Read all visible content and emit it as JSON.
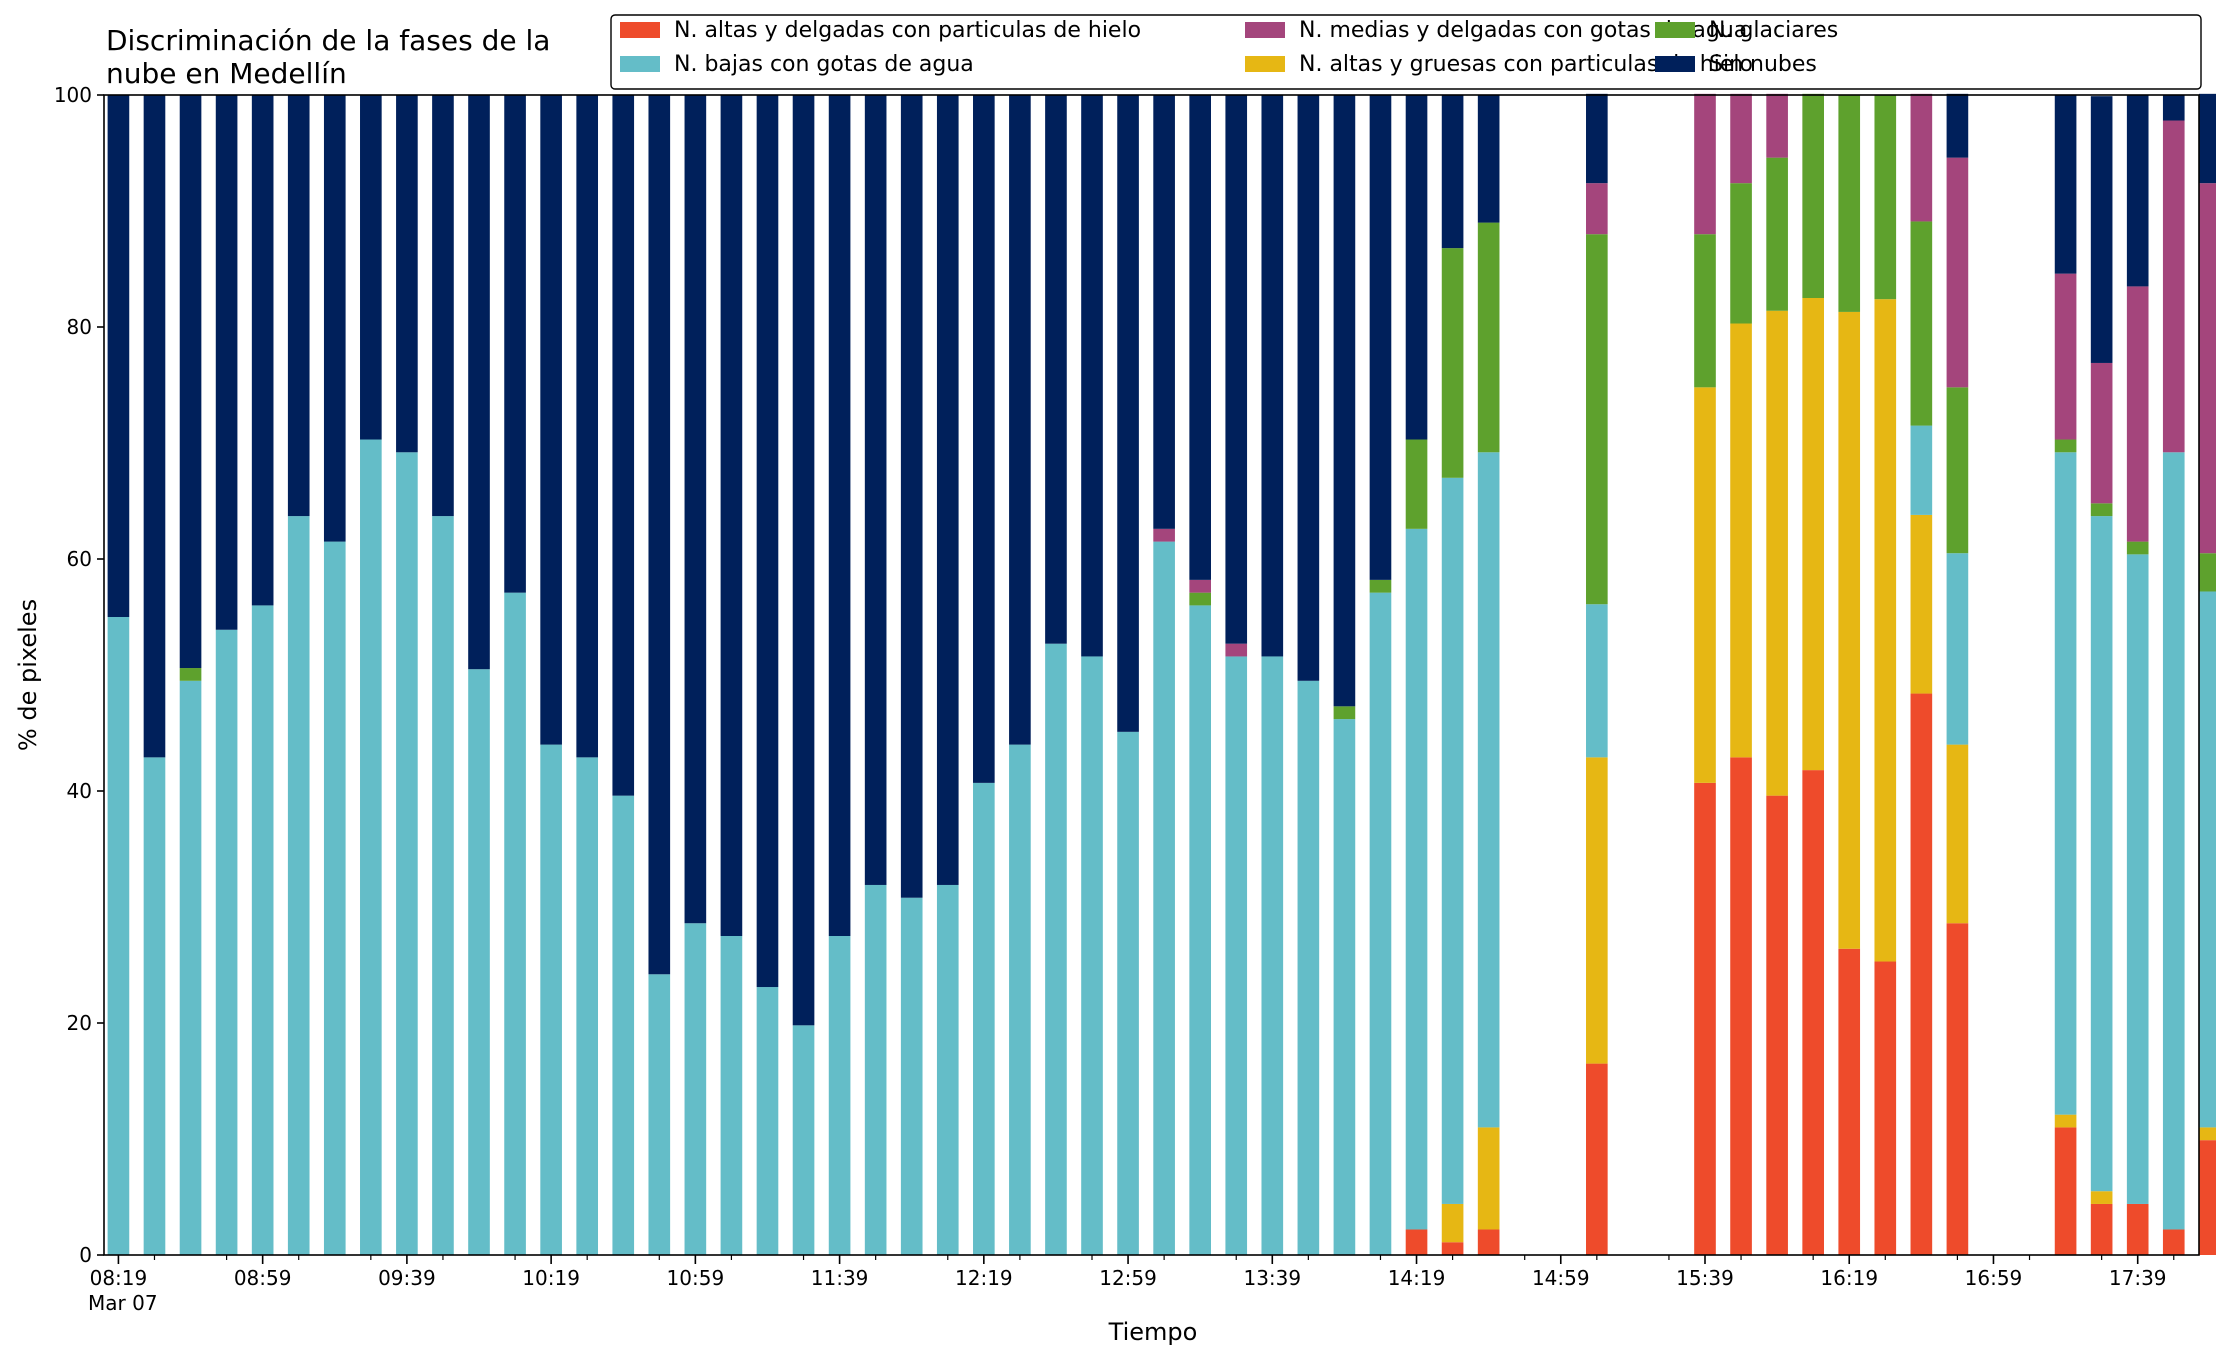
{
  "chart_data": {
    "type": "bar",
    "stacked": true,
    "title_lines": [
      "Discriminación de la fases de la",
      "nube en Medellín"
    ],
    "xlabel": "Tiempo",
    "ylabel": "% de pixeles",
    "ylim": [
      0,
      100
    ],
    "yticks": [
      0,
      20,
      40,
      60,
      80,
      100
    ],
    "xlim_minutes": [
      495,
      1076
    ],
    "date_label": "Mar 07",
    "xtick_labels": [
      "08:19",
      "08:59",
      "09:39",
      "10:19",
      "10:59",
      "11:39",
      "12:19",
      "12:59",
      "13:39",
      "14:19",
      "14:59",
      "15:39",
      "16:19",
      "16:59",
      "17:39"
    ],
    "xtick_minutes": [
      499,
      539,
      579,
      619,
      659,
      699,
      739,
      779,
      819,
      859,
      899,
      939,
      979,
      1019,
      1059
    ],
    "legend_position": "top-right",
    "legend": [
      {
        "name": "N. altas y delgadas con particulas de hielo",
        "color": "#ee4b2b",
        "series": 0
      },
      {
        "name": "N. bajas con gotas de agua",
        "color": "#64bdc8",
        "series": 2
      },
      {
        "name": "N. medias y delgadas con gotas de agua",
        "color": "#a4457c",
        "series": 4
      },
      {
        "name": "N. altas y gruesas con particulas de hielo",
        "color": "#e6b714",
        "series": 1
      },
      {
        "name": "N. glaciares",
        "color": "#5ea12d",
        "series": 3
      },
      {
        "name": "Sin nubes",
        "color": "#00205b",
        "series": 5
      }
    ],
    "x": [
      "08:19",
      "08:29",
      "08:39",
      "08:49",
      "08:59",
      "09:09",
      "09:19",
      "09:29",
      "09:39",
      "09:49",
      "09:59",
      "10:09",
      "10:19",
      "10:29",
      "10:39",
      "10:49",
      "10:59",
      "11:09",
      "11:19",
      "11:29",
      "11:39",
      "11:49",
      "11:59",
      "12:09",
      "12:19",
      "12:29",
      "12:39",
      "12:49",
      "12:59",
      "13:09",
      "13:19",
      "13:29",
      "13:39",
      "13:49",
      "13:59",
      "14:09",
      "14:19",
      "14:29",
      "14:39",
      "15:09",
      "15:29",
      "15:39",
      "15:49",
      "15:59",
      "16:09",
      "16:19",
      "16:29",
      "16:39",
      "16:49",
      "16:59",
      "17:19",
      "17:29",
      "17:39",
      "17:49",
      "17:59"
    ],
    "series": [
      {
        "name": "N. altas y delgadas con particulas de hielo",
        "color": "#ee4b2b",
        "values": [
          0,
          0,
          0,
          0,
          0,
          0,
          0,
          0,
          0,
          0,
          0,
          0,
          0,
          0,
          0,
          0,
          0,
          0,
          0,
          0,
          0,
          0,
          0,
          0,
          0,
          0,
          0,
          0,
          0,
          0,
          0,
          0,
          0,
          0,
          0,
          0,
          2.2,
          1.1,
          2.2,
          16.5,
          0,
          40.7,
          42.9,
          39.6,
          41.8,
          26.4,
          25.3,
          48.4,
          28.6,
          0,
          11.0,
          4.4,
          4.4,
          2.2,
          9.9
        ]
      },
      {
        "name": "N. altas y gruesas con particulas de hielo",
        "color": "#e6b714",
        "values": [
          0,
          0,
          0,
          0,
          0,
          0,
          0,
          0,
          0,
          0,
          0,
          0,
          0,
          0,
          0,
          0,
          0,
          0,
          0,
          0,
          0,
          0,
          0,
          0,
          0,
          0,
          0,
          0,
          0,
          0,
          0,
          0,
          0,
          0,
          0,
          0,
          0,
          3.3,
          8.8,
          26.4,
          0,
          34.1,
          37.4,
          41.8,
          40.7,
          54.9,
          57.1,
          15.4,
          15.4,
          0,
          1.1,
          1.1,
          0,
          0,
          1.1
        ]
      },
      {
        "name": "N. bajas con gotas de agua",
        "color": "#64bdc8",
        "values": [
          55.0,
          42.9,
          49.5,
          53.9,
          56.0,
          63.7,
          61.5,
          70.3,
          69.2,
          63.7,
          50.5,
          57.1,
          44.0,
          42.9,
          39.6,
          24.2,
          28.6,
          27.5,
          23.1,
          19.8,
          27.5,
          31.9,
          30.8,
          31.9,
          40.7,
          44.0,
          52.7,
          51.6,
          45.1,
          61.5,
          56.0,
          51.6,
          51.6,
          49.5,
          46.2,
          57.1,
          60.4,
          62.6,
          58.2,
          13.2,
          0,
          0,
          0,
          0,
          0,
          0,
          0,
          7.7,
          16.5,
          0,
          57.1,
          58.2,
          56.0,
          67.0,
          46.2
        ]
      },
      {
        "name": "N. glaciares",
        "color": "#5ea12d",
        "values": [
          0,
          0,
          1.1,
          0,
          0,
          0,
          0,
          0,
          0,
          0,
          0,
          0,
          0,
          0,
          0,
          0,
          0,
          0,
          0,
          0,
          0,
          0,
          0,
          0,
          0,
          0,
          0,
          0,
          0,
          0,
          1.1,
          0,
          0,
          0,
          1.1,
          1.1,
          7.7,
          19.8,
          19.8,
          31.9,
          0,
          13.2,
          12.1,
          13.2,
          17.6,
          18.7,
          17.6,
          17.6,
          14.3,
          0,
          1.1,
          1.1,
          1.1,
          0,
          3.3
        ]
      },
      {
        "name": "N. medias y delgadas con gotas de agua",
        "color": "#a4457c",
        "values": [
          0,
          0,
          0,
          0,
          0,
          0,
          0,
          0,
          0,
          0,
          0,
          0,
          0,
          0,
          0,
          0,
          0,
          0,
          0,
          0,
          0,
          0,
          0,
          0,
          0,
          0,
          0,
          0,
          0,
          1.1,
          1.1,
          1.1,
          0,
          0,
          0,
          0,
          0,
          0,
          0,
          4.4,
          0,
          12.1,
          7.7,
          5.5,
          0,
          0,
          0,
          11.0,
          19.8,
          0,
          14.3,
          12.1,
          22.0,
          28.6,
          31.9
        ]
      },
      {
        "name": "Sin nubes",
        "color": "#00205b",
        "values": [
          45.0,
          57.1,
          49.4,
          46.1,
          44.0,
          36.3,
          38.5,
          29.7,
          30.8,
          36.3,
          49.5,
          42.9,
          56.0,
          57.1,
          60.4,
          75.8,
          71.4,
          72.5,
          76.9,
          80.2,
          72.5,
          68.1,
          69.2,
          68.1,
          59.3,
          56.0,
          47.3,
          48.4,
          54.9,
          37.4,
          41.8,
          47.3,
          48.4,
          50.5,
          52.7,
          41.8,
          29.7,
          13.2,
          11.0,
          7.7,
          0,
          0,
          0,
          0,
          0,
          0,
          0,
          0,
          5.5,
          0,
          15.4,
          23.0,
          16.5,
          2.2,
          7.7
        ]
      }
    ]
  }
}
